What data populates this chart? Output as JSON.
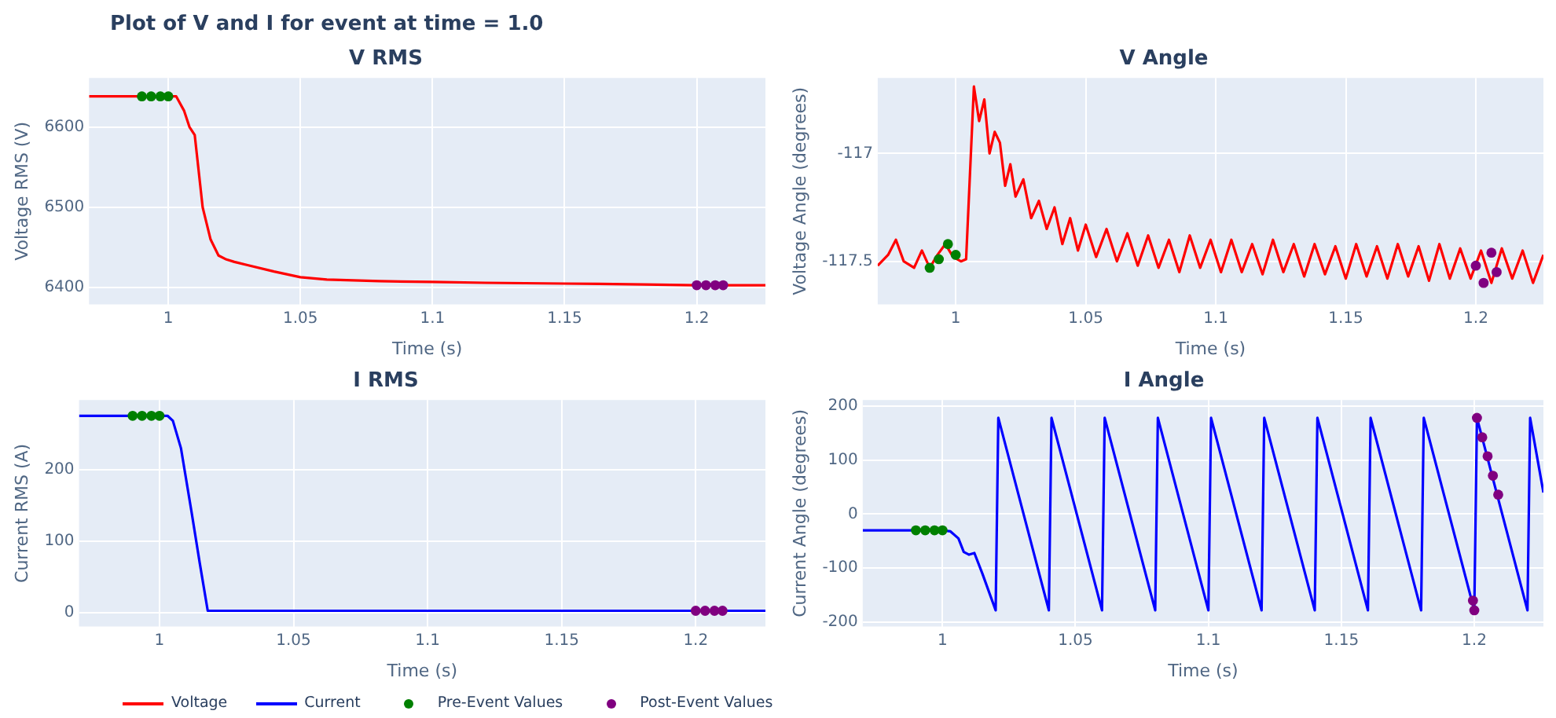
{
  "chart_data": [
    {
      "type": "line",
      "title": "V RMS",
      "annotations": [
        "Plot of V and I for event at time = 1.0"
      ],
      "xlabel": "Time (s)",
      "ylabel": "Voltage RMS (V)",
      "xlim": [
        0.97,
        1.226
      ],
      "xticks": [
        1,
        1.05,
        1.1,
        1.15,
        1.2
      ],
      "ylim": [
        6379,
        6661
      ],
      "yticks": [
        6400,
        6500,
        6600
      ],
      "grid": true,
      "legend": "bottom",
      "series": [
        {
          "name": "Voltage",
          "type": "line",
          "color": "#ff0000",
          "x": [
            0.97,
            0.99,
            1.003,
            1.006,
            1.008,
            1.01,
            1.013,
            1.016,
            1.019,
            1.022,
            1.025,
            1.03,
            1.04,
            1.05,
            1.06,
            1.08,
            1.1,
            1.12,
            1.15,
            1.18,
            1.2,
            1.226
          ],
          "values": [
            6638,
            6638,
            6638,
            6620,
            6600,
            6590,
            6500,
            6460,
            6440,
            6435,
            6432,
            6428,
            6420,
            6413,
            6410,
            6408,
            6407,
            6406,
            6405,
            6404,
            6403,
            6403
          ]
        },
        {
          "name": "Pre-Event Values",
          "type": "scatter",
          "color": "#008000",
          "x": [
            0.99,
            0.9935,
            0.997,
            1.0
          ],
          "values": [
            6638,
            6638,
            6638,
            6638
          ]
        },
        {
          "name": "Post-Event Values",
          "type": "scatter",
          "color": "#800080",
          "x": [
            1.2,
            1.2035,
            1.207,
            1.21
          ],
          "values": [
            6403,
            6403,
            6403,
            6403
          ]
        }
      ]
    },
    {
      "type": "line",
      "title": "V Angle",
      "xlabel": "Time (s)",
      "ylabel": "Voltage Angle (degrees)",
      "xlim": [
        0.97,
        1.226
      ],
      "xticks": [
        1,
        1.05,
        1.1,
        1.15,
        1.2
      ],
      "ylim": [
        -117.7,
        -116.65
      ],
      "yticks": [
        -117,
        -117.5
      ],
      "grid": true,
      "series": [
        {
          "type": "line",
          "color": "#ff0000",
          "x": [
            0.97,
            0.974,
            0.977,
            0.98,
            0.984,
            0.987,
            0.99,
            0.993,
            0.996,
            0.999,
            1.002,
            1.004,
            1.007,
            1.009,
            1.011,
            1.013,
            1.015,
            1.017,
            1.019,
            1.021,
            1.023,
            1.026,
            1.029,
            1.032,
            1.035,
            1.038,
            1.041,
            1.044,
            1.047,
            1.05,
            1.054,
            1.058,
            1.062,
            1.066,
            1.07,
            1.074,
            1.078,
            1.082,
            1.086,
            1.09,
            1.094,
            1.098,
            1.102,
            1.106,
            1.11,
            1.114,
            1.118,
            1.122,
            1.126,
            1.13,
            1.134,
            1.138,
            1.142,
            1.146,
            1.15,
            1.154,
            1.158,
            1.162,
            1.166,
            1.17,
            1.174,
            1.178,
            1.182,
            1.186,
            1.19,
            1.194,
            1.198,
            1.202,
            1.206,
            1.21,
            1.214,
            1.218,
            1.222,
            1.226
          ],
          "values": [
            -117.52,
            -117.47,
            -117.4,
            -117.5,
            -117.53,
            -117.45,
            -117.53,
            -117.47,
            -117.42,
            -117.48,
            -117.5,
            -117.49,
            -116.69,
            -116.85,
            -116.75,
            -117.0,
            -116.9,
            -116.95,
            -117.15,
            -117.05,
            -117.2,
            -117.12,
            -117.3,
            -117.22,
            -117.35,
            -117.25,
            -117.42,
            -117.3,
            -117.45,
            -117.33,
            -117.48,
            -117.35,
            -117.5,
            -117.37,
            -117.52,
            -117.38,
            -117.53,
            -117.4,
            -117.55,
            -117.38,
            -117.53,
            -117.4,
            -117.55,
            -117.4,
            -117.55,
            -117.42,
            -117.56,
            -117.4,
            -117.55,
            -117.42,
            -117.57,
            -117.42,
            -117.56,
            -117.43,
            -117.58,
            -117.42,
            -117.57,
            -117.43,
            -117.58,
            -117.42,
            -117.57,
            -117.43,
            -117.59,
            -117.42,
            -117.58,
            -117.44,
            -117.58,
            -117.45,
            -117.6,
            -117.44,
            -117.58,
            -117.45,
            -117.6,
            -117.47
          ]
        },
        {
          "type": "scatter",
          "color": "#008000",
          "x": [
            0.99,
            0.9935,
            0.997,
            1.0
          ],
          "values": [
            -117.53,
            -117.49,
            -117.42,
            -117.47
          ]
        },
        {
          "type": "scatter",
          "color": "#800080",
          "x": [
            1.2,
            1.203,
            1.206,
            1.208
          ],
          "values": [
            -117.52,
            -117.6,
            -117.46,
            -117.55
          ]
        }
      ]
    },
    {
      "type": "line",
      "title": "I RMS",
      "xlabel": "Time (s)",
      "ylabel": "Current RMS (A)",
      "xlim": [
        0.97,
        1.226
      ],
      "xticks": [
        1,
        1.05,
        1.1,
        1.15,
        1.2
      ],
      "ylim": [
        -19,
        297
      ],
      "yticks": [
        0,
        100,
        200
      ],
      "grid": true,
      "legend": "bottom",
      "series": [
        {
          "name": "Current",
          "type": "line",
          "color": "#0000ff",
          "x": [
            0.97,
            1.0,
            1.003,
            1.005,
            1.008,
            1.012,
            1.015,
            1.018,
            1.05,
            1.1,
            1.15,
            1.2,
            1.226
          ],
          "values": [
            275,
            275,
            275,
            268,
            230,
            140,
            70,
            3,
            3,
            3,
            3,
            3,
            3
          ]
        },
        {
          "name": "Pre-Event Values",
          "type": "scatter",
          "color": "#008000",
          "x": [
            0.99,
            0.9935,
            0.997,
            1.0
          ],
          "values": [
            275,
            275,
            275,
            275
          ]
        },
        {
          "name": "Post-Event Values",
          "type": "scatter",
          "color": "#800080",
          "x": [
            1.2,
            1.2035,
            1.207,
            1.21
          ],
          "values": [
            3,
            3,
            3,
            3
          ]
        }
      ]
    },
    {
      "type": "line",
      "title": "I Angle",
      "xlabel": "Time (s)",
      "ylabel": "Current Angle (degrees)",
      "xlim": [
        0.97,
        1.226
      ],
      "xticks": [
        1,
        1.05,
        1.1,
        1.15,
        1.2
      ],
      "ylim": [
        -208,
        211
      ],
      "yticks": [
        -200,
        -100,
        0,
        100,
        200
      ],
      "grid": true,
      "series": [
        {
          "type": "line",
          "color": "#0000ff",
          "x": [
            0.97,
            1.0,
            1.003,
            1.006,
            1.008,
            1.01,
            1.012,
            1.015,
            1.02,
            1.021,
            1.04,
            1.041,
            1.06,
            1.061,
            1.08,
            1.081,
            1.1,
            1.101,
            1.12,
            1.121,
            1.14,
            1.141,
            1.16,
            1.161,
            1.18,
            1.181,
            1.2,
            1.201,
            1.22,
            1.221,
            1.226
          ],
          "values": [
            -30,
            -30,
            -32,
            -45,
            -70,
            -75,
            -72,
            -110,
            -178,
            178,
            -178,
            178,
            -178,
            178,
            -178,
            178,
            -178,
            178,
            -178,
            178,
            -178,
            178,
            -178,
            178,
            -178,
            178,
            -178,
            178,
            -178,
            178,
            40
          ]
        },
        {
          "type": "scatter",
          "color": "#008000",
          "x": [
            0.99,
            0.9935,
            0.997,
            1.0
          ],
          "values": [
            -30,
            -30,
            -30,
            -30
          ]
        },
        {
          "type": "scatter",
          "color": "#800080",
          "x": [
            1.1995,
            1.2,
            1.201,
            1.203,
            1.205,
            1.207,
            1.209
          ],
          "values": [
            -160,
            -178,
            178,
            142,
            107,
            71,
            36
          ]
        }
      ]
    }
  ]
}
